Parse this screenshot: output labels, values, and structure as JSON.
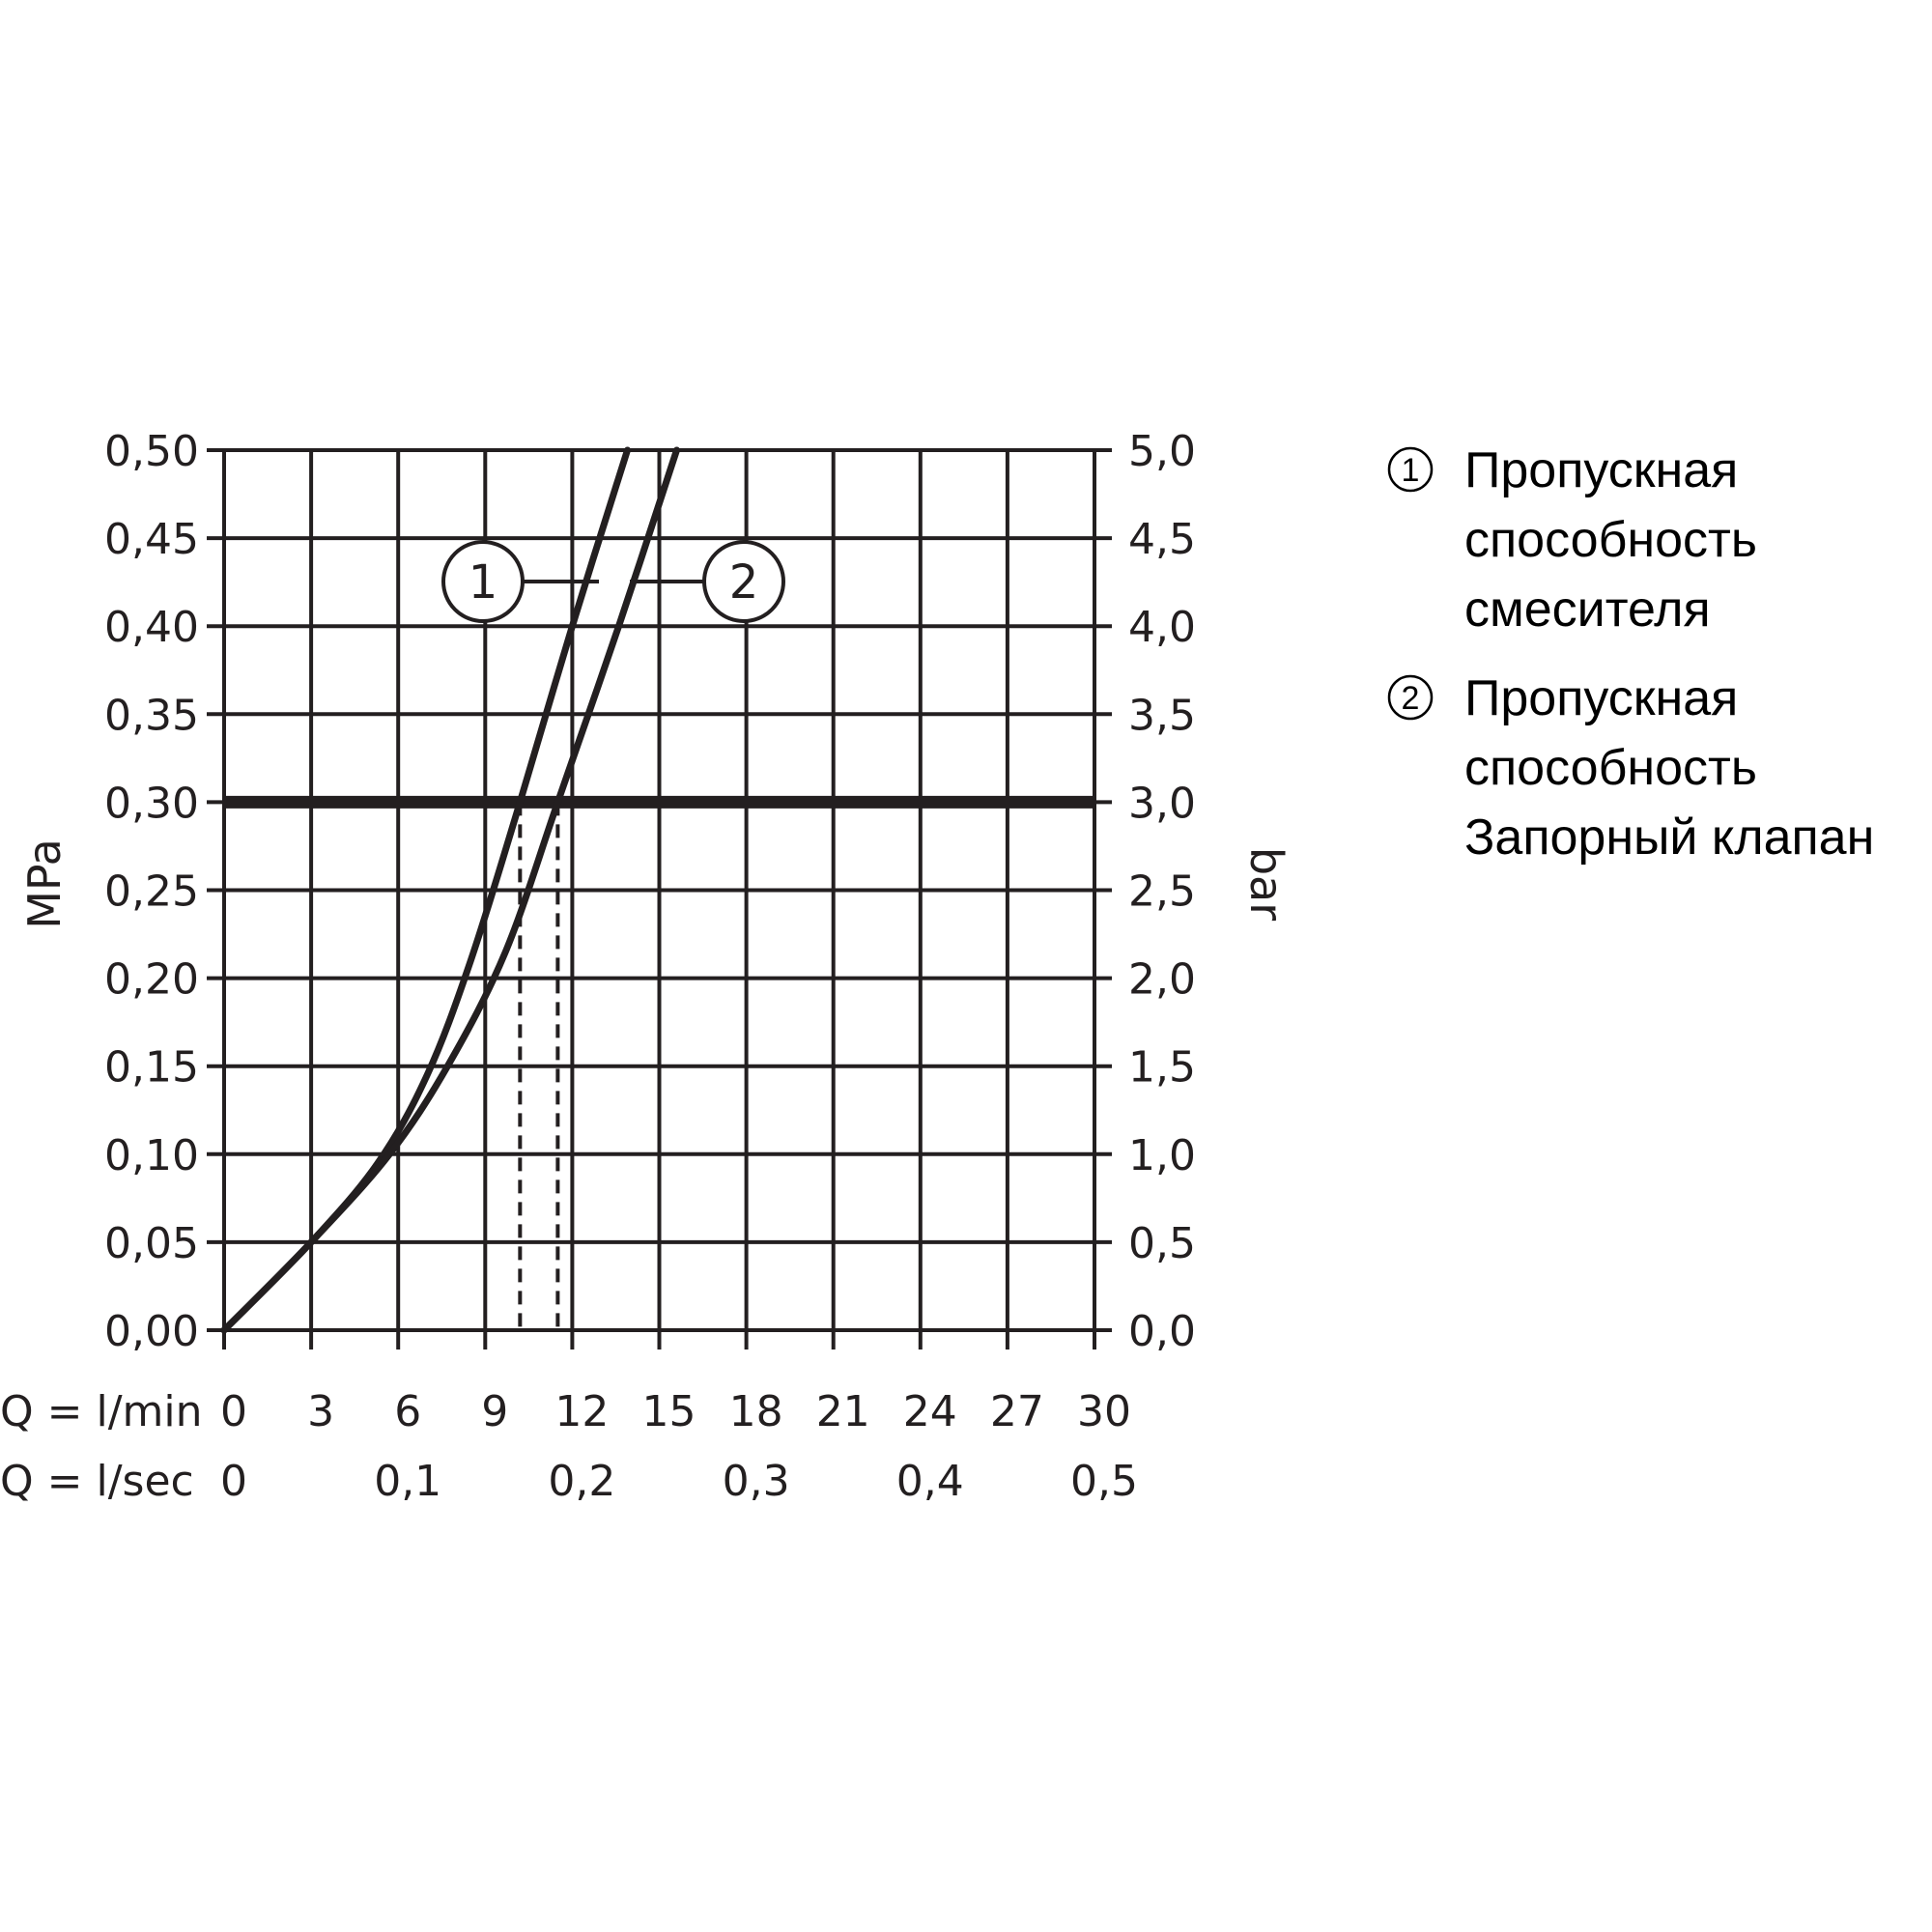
{
  "chart_data": {
    "type": "line",
    "y_left_label": "MPa",
    "y_right_label": "bar",
    "y_left_ticks": [
      "0,00",
      "0,05",
      "0,10",
      "0,15",
      "0,20",
      "0,25",
      "0,30",
      "0,35",
      "0,40",
      "0,45",
      "0,50"
    ],
    "y_right_ticks": [
      "0,0",
      "0,5",
      "1,0",
      "1,5",
      "2,0",
      "2,5",
      "3,0",
      "3,5",
      "4,0",
      "4,5",
      "5,0"
    ],
    "ylim": [
      0,
      0.5
    ],
    "xlim": [
      0,
      30
    ],
    "x_axis_1": {
      "label": "Q = l/min",
      "ticks": [
        "0",
        "3",
        "6",
        "9",
        "12",
        "15",
        "18",
        "21",
        "24",
        "27",
        "30"
      ],
      "values": [
        0,
        3,
        6,
        9,
        12,
        15,
        18,
        21,
        24,
        27,
        30
      ]
    },
    "x_axis_2": {
      "label": "Q = l/sec",
      "ticks": [
        "0",
        "0,1",
        "0,2",
        "0,3",
        "0,4",
        "0,5"
      ],
      "values": [
        0,
        6,
        12,
        18,
        24,
        30
      ]
    },
    "grid": true,
    "reference_line": {
      "y": 0.3
    },
    "dashed_markers": [
      {
        "series": "1",
        "x": 10.2
      },
      {
        "series": "2",
        "x": 11.5
      }
    ],
    "series": [
      {
        "name": "1",
        "x": [
          0,
          3,
          5.3,
          7,
          8.5,
          10.2,
          12,
          13.9
        ],
        "y": [
          0,
          0.05,
          0.095,
          0.145,
          0.21,
          0.3,
          0.4,
          0.5
        ]
      },
      {
        "name": "2",
        "x": [
          0,
          3,
          5.7,
          7.7,
          9.7,
          11.5,
          13.6,
          15.6
        ],
        "y": [
          0,
          0.05,
          0.1,
          0.15,
          0.215,
          0.3,
          0.4,
          0.5
        ]
      }
    ]
  },
  "legend": {
    "items": [
      {
        "marker": "1",
        "lines": [
          "Пропускная",
          "способность",
          "смесителя"
        ]
      },
      {
        "marker": "2",
        "lines": [
          "Пропускная",
          "способность",
          "Запорный клапан"
        ]
      }
    ]
  }
}
